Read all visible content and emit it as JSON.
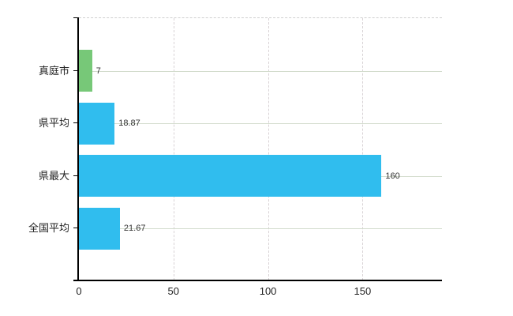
{
  "chart_data": {
    "type": "bar",
    "orientation": "horizontal",
    "title": "",
    "xlabel": "",
    "ylabel": "",
    "categories": [
      "真庭市",
      "県平均",
      "県最大",
      "全国平均"
    ],
    "values": [
      7,
      18.87,
      160,
      21.67
    ],
    "value_labels": [
      "7",
      "18.87",
      "160",
      "21.67"
    ],
    "bar_colors": [
      "#77c878",
      "#30bdee",
      "#30bdee",
      "#30bdee"
    ],
    "xlim": [
      0,
      192
    ],
    "xticks": [
      0,
      50,
      100,
      150
    ],
    "xtick_labels": [
      "0",
      "50",
      "100",
      "150"
    ],
    "grid": true,
    "legend": false
  },
  "colors": {
    "bar_green": "#77c878",
    "bar_blue": "#30bdee",
    "axis": "#000000",
    "grid_horizontal": "#d3dccd",
    "grid_vertical": "#d8d2d5",
    "plot_top_border": "#cfcfcf",
    "text": "#333333",
    "background": "#ffffff"
  }
}
